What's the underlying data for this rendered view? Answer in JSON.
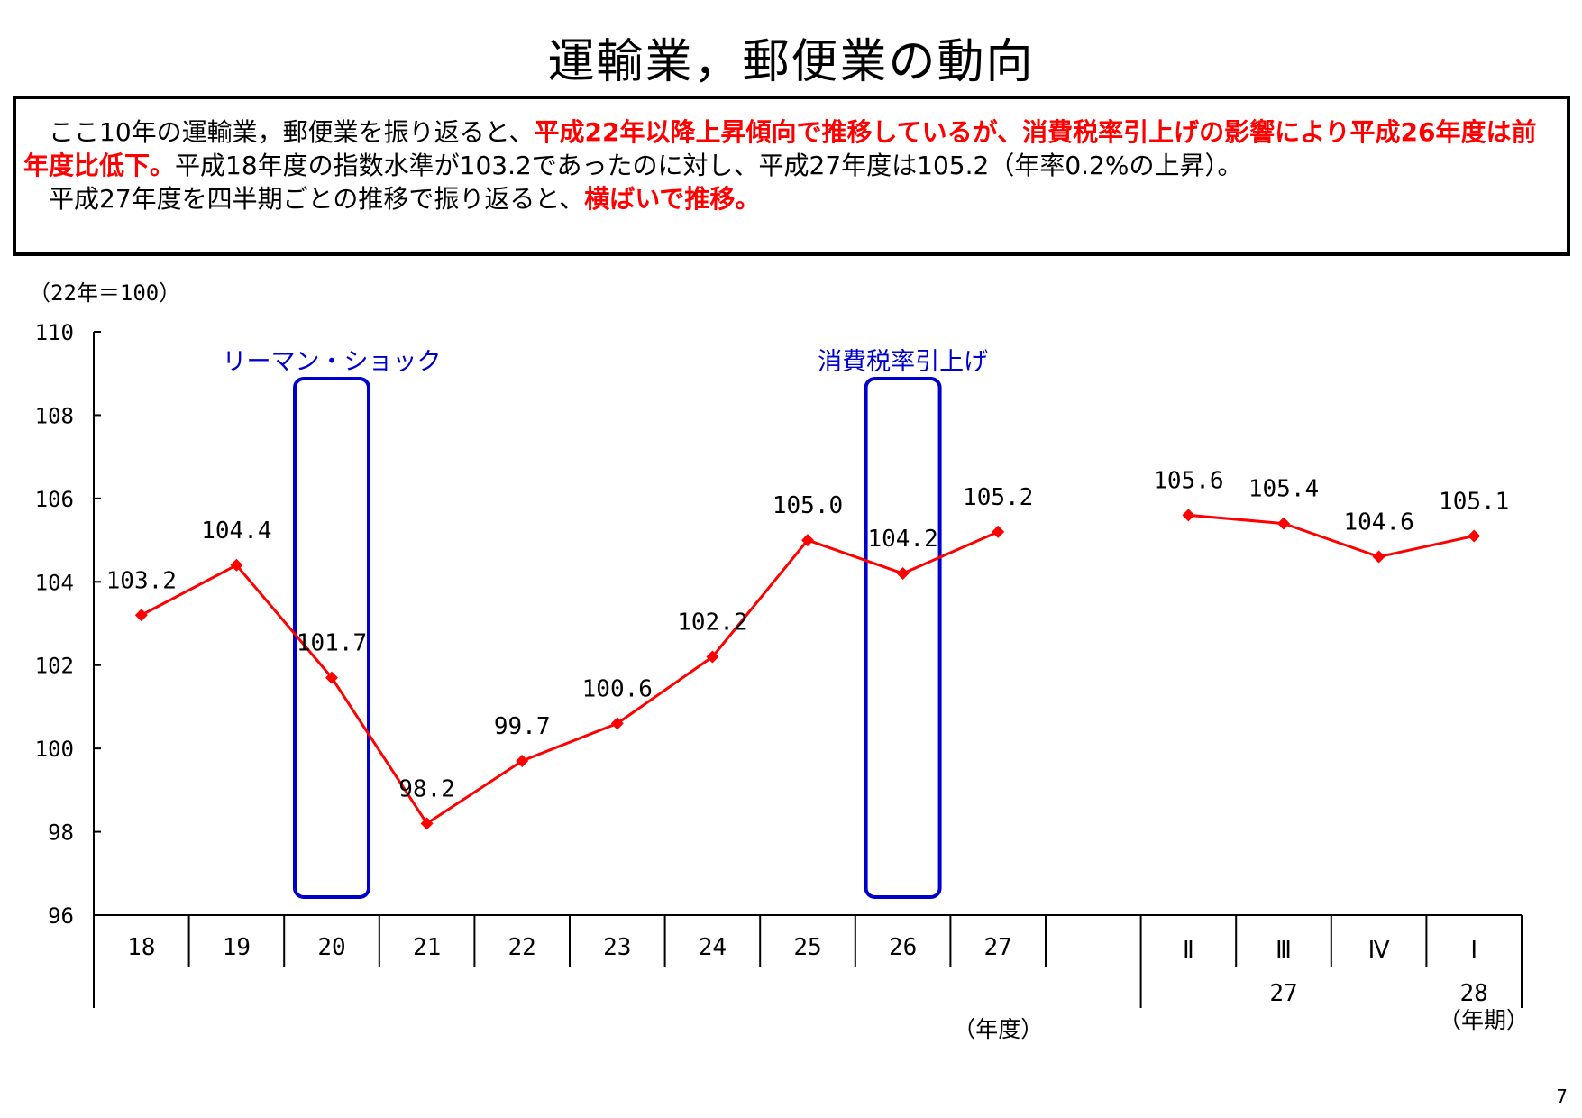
{
  "page": {
    "title": "運輸業，郵便業の動向",
    "summary": {
      "p1_a": "ここ10年の運輸業，郵便業を振り返ると、",
      "p1_b": "平成22年以降上昇傾向で推移しているが、消費税率引上げの影響により平成26年度は前年度比低下。",
      "p1_c": "平成18年度の指数水準が103.2であったのに対し、平成27年度は105.2（年率0.2%の上昇）。",
      "p2_a": "平成27年度を四半期ごとの推移で振り返ると、",
      "p2_b": "横ばいで推移。"
    },
    "page_number": "7"
  },
  "chart_data": {
    "type": "line",
    "ylabel": "（22年＝100）",
    "ylim": [
      96,
      110
    ],
    "yticks": [
      96,
      98,
      100,
      102,
      104,
      106,
      108,
      110
    ],
    "colors": {
      "series": "#ff0000",
      "highlight": "#0000cc"
    },
    "series": [
      {
        "segment": "annual",
        "categories": [
          "18",
          "19",
          "20",
          "21",
          "22",
          "23",
          "24",
          "25",
          "26",
          "27"
        ],
        "values": [
          103.2,
          104.4,
          101.7,
          98.2,
          99.7,
          100.6,
          102.2,
          105.0,
          104.2,
          105.2
        ],
        "labels": [
          "103.2",
          "104.4",
          "101.7",
          "98.2",
          "99.7",
          "100.6",
          "102.2",
          "105.0",
          "104.2",
          "105.2"
        ]
      },
      {
        "segment": "quarterly",
        "categories": [
          "Ⅱ",
          "Ⅲ",
          "Ⅳ",
          "Ⅰ"
        ],
        "values": [
          105.6,
          105.4,
          104.6,
          105.1
        ],
        "labels": [
          "105.6",
          "105.4",
          "104.6",
          "105.1"
        ]
      }
    ],
    "quarter_year_labels": [
      "27",
      "28"
    ],
    "annotations": [
      {
        "text": "リーマン・ショック",
        "category": "20"
      },
      {
        "text": "消費税率引上げ",
        "category": "26"
      }
    ],
    "axis_unit_labels": {
      "annual": "（年度）",
      "quarterly": "（年期）"
    }
  }
}
